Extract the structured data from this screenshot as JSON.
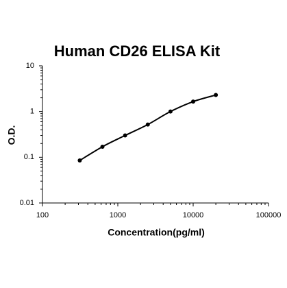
{
  "chart_data": {
    "type": "scatter",
    "title": "Human CD26 ELISA Kit",
    "x_label": "Concentration(pg/ml)",
    "y_label": "O.D.",
    "x": [
      312.5,
      625,
      1250,
      2500,
      5000,
      10000,
      20000
    ],
    "values": [
      0.085,
      0.17,
      0.3,
      0.52,
      1.0,
      1.65,
      2.3
    ],
    "color": "#000000",
    "xlog": true,
    "ylog": true,
    "xlim": [
      100,
      100000
    ],
    "ylim": [
      0.01,
      10
    ],
    "xticks": [
      100,
      1000,
      10000,
      100000
    ],
    "yticks": [
      0.01,
      0.1,
      1,
      10
    ]
  }
}
